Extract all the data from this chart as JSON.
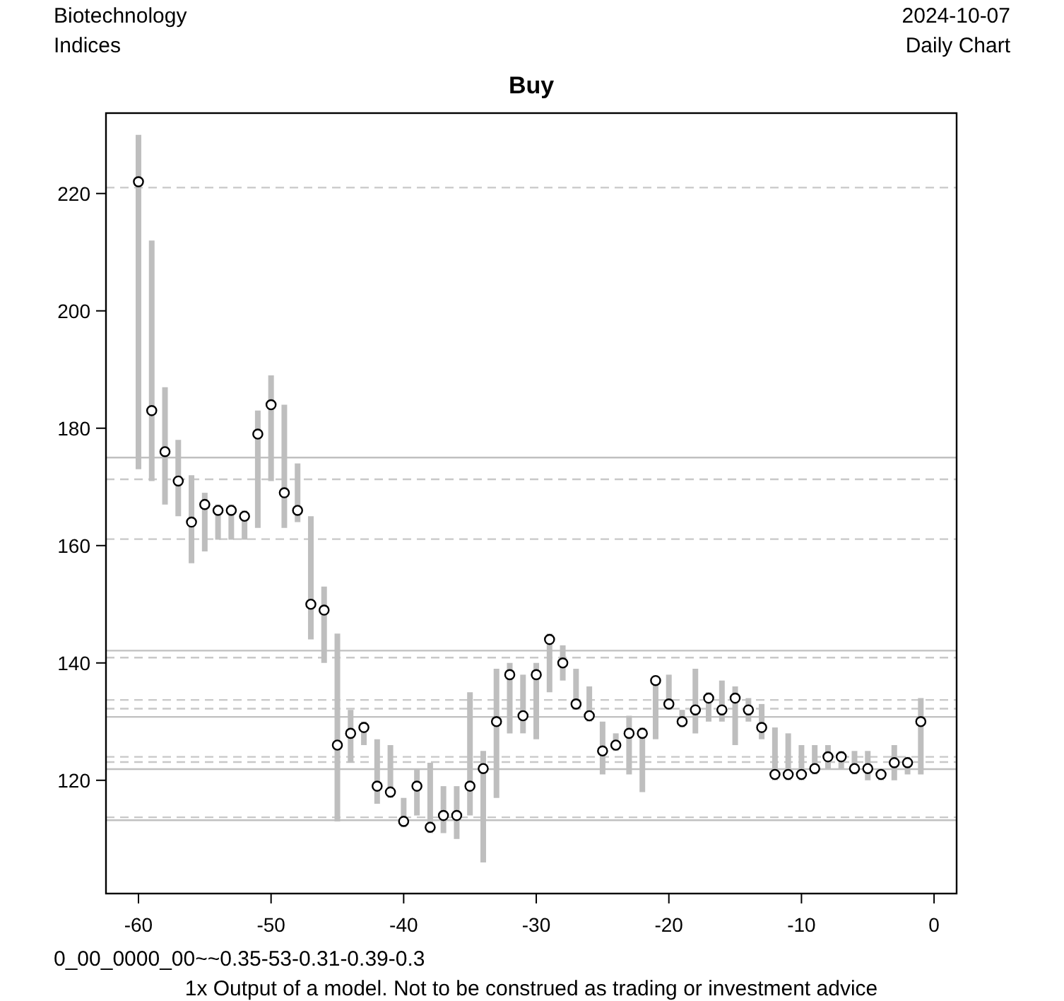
{
  "chart_data": {
    "type": "scatter",
    "title": "Buy",
    "annotations": [
      "Biotechnology",
      "Indices",
      "2024-10-07",
      "Daily Chart",
      "0_00_0000_00~~0.35-53-0.31-0.39-0.3",
      "1x Output of a model. Not to be construed as trading or investment advice"
    ],
    "x": [
      -60,
      -59,
      -58,
      -57,
      -56,
      -55,
      -54,
      -53,
      -52,
      -51,
      -50,
      -49,
      -48,
      -47,
      -46,
      -45,
      -44,
      -43,
      -42,
      -41,
      -40,
      -39,
      -38,
      -37,
      -36,
      -35,
      -34,
      -33,
      -32,
      -31,
      -30,
      -29,
      -28,
      -27,
      -26,
      -25,
      -24,
      -23,
      -22,
      -21,
      -20,
      -19,
      -18,
      -17,
      -16,
      -15,
      -14,
      -13,
      -12,
      -11,
      -10,
      -9,
      -8,
      -7,
      -6,
      -5,
      -4,
      -3,
      -2,
      -1
    ],
    "series": [
      {
        "color": "#000000",
        "marker": "circle",
        "values": [
          222,
          183,
          176,
          171,
          164,
          167,
          166,
          166,
          165,
          179,
          184,
          169,
          166,
          150,
          149,
          126,
          128,
          129,
          119,
          118,
          113,
          119,
          112,
          114,
          114,
          119,
          122,
          130,
          138,
          131,
          138,
          144,
          140,
          133,
          131,
          125,
          126,
          128,
          128,
          137,
          133,
          130,
          132,
          134,
          132,
          134,
          132,
          129,
          121,
          121,
          121,
          122,
          124,
          124,
          122,
          122,
          121,
          123,
          123,
          130
        ],
        "errors": [
          [
            173,
            230
          ],
          [
            171,
            212
          ],
          [
            167,
            187
          ],
          [
            165,
            178
          ],
          [
            157,
            172
          ],
          [
            159,
            169
          ],
          [
            161,
            167
          ],
          [
            161,
            167
          ],
          [
            161,
            166
          ],
          [
            163,
            183
          ],
          [
            171,
            189
          ],
          [
            163,
            184
          ],
          [
            164,
            174
          ],
          [
            144,
            165
          ],
          [
            140,
            153
          ],
          [
            113,
            145
          ],
          [
            123,
            132
          ],
          [
            126,
            130
          ],
          [
            116,
            127
          ],
          [
            117,
            126
          ],
          [
            112,
            117
          ],
          [
            114,
            122
          ],
          [
            111,
            123
          ],
          [
            111,
            119
          ],
          [
            110,
            119
          ],
          [
            114,
            135
          ],
          [
            106,
            125
          ],
          [
            117,
            139
          ],
          [
            128,
            140
          ],
          [
            128,
            138
          ],
          [
            127,
            140
          ],
          [
            135,
            145
          ],
          [
            137,
            143
          ],
          [
            132,
            139
          ],
          [
            130,
            136
          ],
          [
            121,
            130
          ],
          [
            125,
            128
          ],
          [
            121,
            131
          ],
          [
            118,
            129
          ],
          [
            127,
            137
          ],
          [
            132,
            138
          ],
          [
            129,
            132
          ],
          [
            128,
            139
          ],
          [
            130,
            135
          ],
          [
            130,
            137
          ],
          [
            126,
            136
          ],
          [
            130,
            134
          ],
          [
            127,
            133
          ],
          [
            120,
            129
          ],
          [
            120,
            128
          ],
          [
            120,
            126
          ],
          [
            121,
            126
          ],
          [
            122,
            126
          ],
          [
            122,
            125
          ],
          [
            121,
            125
          ],
          [
            120,
            125
          ],
          [
            120,
            122
          ],
          [
            120,
            126
          ],
          [
            121,
            124
          ],
          [
            121,
            134
          ]
        ]
      }
    ],
    "xlim": [
      -62.45,
      1.7
    ],
    "ylim": [
      100.7,
      233.7
    ],
    "xticks": [
      -60,
      -50,
      -40,
      -30,
      -20,
      -10,
      0
    ],
    "yticks": [
      120,
      140,
      160,
      180,
      200,
      220
    ],
    "grid": false,
    "ref_lines": [
      {
        "axis": "y",
        "value": 221,
        "line_style": "dashed",
        "color": "#c8c8c8"
      },
      {
        "axis": "y",
        "value": 175,
        "line_style": "solid",
        "color": "#c0c0c0"
      },
      {
        "axis": "y",
        "value": 171.3,
        "line_style": "dashed",
        "color": "#c8c8c8"
      },
      {
        "axis": "y",
        "value": 161.1,
        "line_style": "dashed",
        "color": "#c8c8c8"
      },
      {
        "axis": "y",
        "value": 142.1,
        "line_style": "solid",
        "color": "#c0c0c0"
      },
      {
        "axis": "y",
        "value": 140.9,
        "line_style": "dashed",
        "color": "#c8c8c8"
      },
      {
        "axis": "y",
        "value": 133.7,
        "line_style": "dashed",
        "color": "#c8c8c8"
      },
      {
        "axis": "y",
        "value": 132.2,
        "line_style": "dashed",
        "color": "#c8c8c8"
      },
      {
        "axis": "y",
        "value": 130.8,
        "line_style": "solid",
        "color": "#c0c0c0"
      },
      {
        "axis": "y",
        "value": 124,
        "line_style": "dashed",
        "color": "#c8c8c8"
      },
      {
        "axis": "y",
        "value": 123.1,
        "line_style": "dashed",
        "color": "#c8c8c8"
      },
      {
        "axis": "y",
        "value": 121.9,
        "line_style": "solid",
        "color": "#c0c0c0"
      },
      {
        "axis": "y",
        "value": 113.7,
        "line_style": "dashed",
        "color": "#c8c8c8"
      },
      {
        "axis": "y",
        "value": 113.2,
        "line_style": "solid",
        "color": "#c0c0c0"
      }
    ]
  }
}
